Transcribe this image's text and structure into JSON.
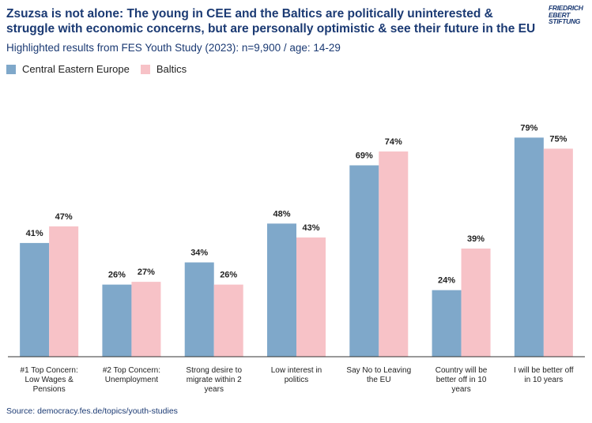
{
  "header": {
    "title": "Zsuzsa is not alone: The young in CEE and the Baltics are politically uninterested & struggle with economic concerns, but are personally optimistic & see their future in the EU",
    "subtitle": "Highlighted results from FES Youth Study (2023): n=9,900 / age: 14-29",
    "logo_lines": [
      "FRIEDRICH",
      "EBERT",
      "STIFTUNG"
    ]
  },
  "footer": {
    "source": "Source: democracy.fes.de/topics/youth-studies"
  },
  "colors": {
    "cee": "#7fa8ca",
    "baltics": "#f7c2c7",
    "title": "#1b3a73",
    "axis": "#333333"
  },
  "chart_data": {
    "type": "bar",
    "title": "",
    "xlabel": "",
    "ylabel": "",
    "ylim": [
      0,
      100
    ],
    "grid": false,
    "legend_position": "top-left",
    "categories": [
      [
        "#1 Top Concern:",
        "Low Wages &",
        "Pensions"
      ],
      [
        "#2 Top Concern:",
        "Unemployment"
      ],
      [
        "Strong desire to",
        "migrate within 2",
        "years"
      ],
      [
        "Low interest in",
        "politics"
      ],
      [
        "Say No to Leaving",
        "the EU"
      ],
      [
        "Country will be",
        "better off in 10",
        "years"
      ],
      [
        "I will be better off",
        "in 10 years"
      ]
    ],
    "series": [
      {
        "name": "Central Eastern Europe",
        "values": [
          41,
          26,
          34,
          48,
          69,
          24,
          79
        ]
      },
      {
        "name": "Baltics",
        "values": [
          47,
          27,
          26,
          43,
          74,
          39,
          75
        ]
      }
    ],
    "value_suffix": "%"
  }
}
